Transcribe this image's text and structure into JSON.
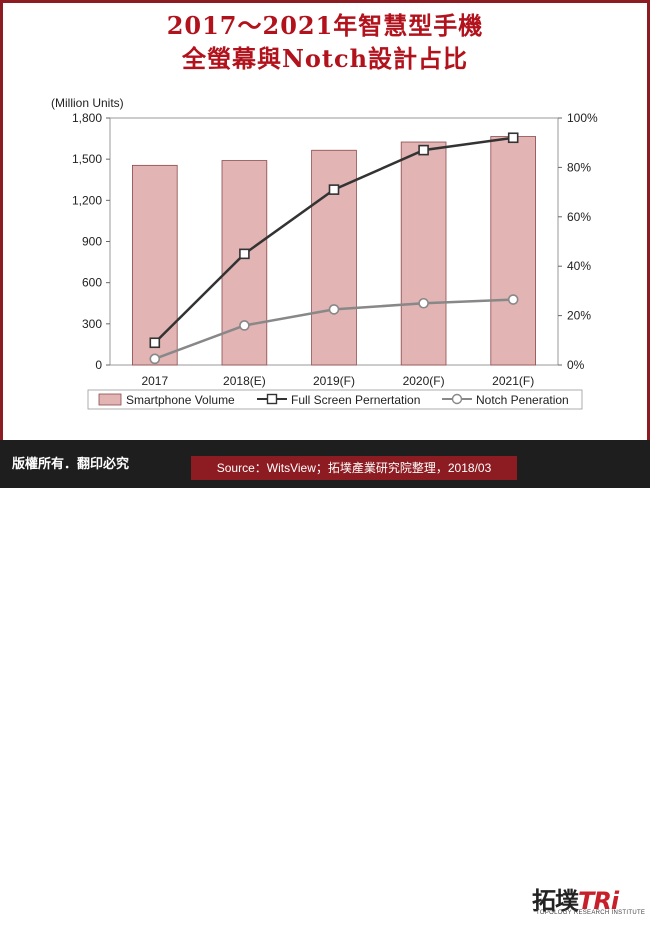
{
  "header": {
    "title_line1": "2017～2021年智慧型手機",
    "title_line2": "全螢幕與Notch設計占比"
  },
  "chart_data": {
    "type": "bar",
    "categories": [
      "2017",
      "2018(E)",
      "2019(F)",
      "2020(F)",
      "2021(F)"
    ],
    "series": [
      {
        "name": "Smartphone Volume",
        "kind": "bar",
        "axis": "left",
        "values": [
          1455,
          1490,
          1565,
          1625,
          1665
        ]
      },
      {
        "name": "Full Screen Pernertation",
        "kind": "line",
        "axis": "right",
        "values": [
          0.09,
          0.45,
          0.71,
          0.87,
          0.92
        ]
      },
      {
        "name": "Notch Peneration",
        "kind": "line",
        "axis": "right",
        "values": [
          0.025,
          0.16,
          0.225,
          0.25,
          0.265
        ]
      }
    ],
    "ylabel": "(Million Units)",
    "ylim": [
      0,
      1800
    ],
    "y_ticks": [
      "0",
      "300",
      "600",
      "900",
      "1,200",
      "1,500",
      "1,800"
    ],
    "y2lim": [
      0,
      1
    ],
    "y2_ticks": [
      "0%",
      "20%",
      "40%",
      "60%",
      "80%",
      "100%"
    ],
    "legend_position": "bottom",
    "colors": {
      "bar_fill": "#e2b4b4",
      "bar_stroke": "#8c4a4a",
      "full_screen_line": "#333333",
      "notch_line": "#888888"
    }
  },
  "footer": {
    "rights": "版權所有．翻印必究",
    "source": "Source：WitsView；拓墣產業研究院整理，2018/03",
    "logo_cn": "拓墣",
    "logo_tri": "TRi",
    "logo_sub": "TOPOLOGY RESEARCH INSTITUTE"
  }
}
